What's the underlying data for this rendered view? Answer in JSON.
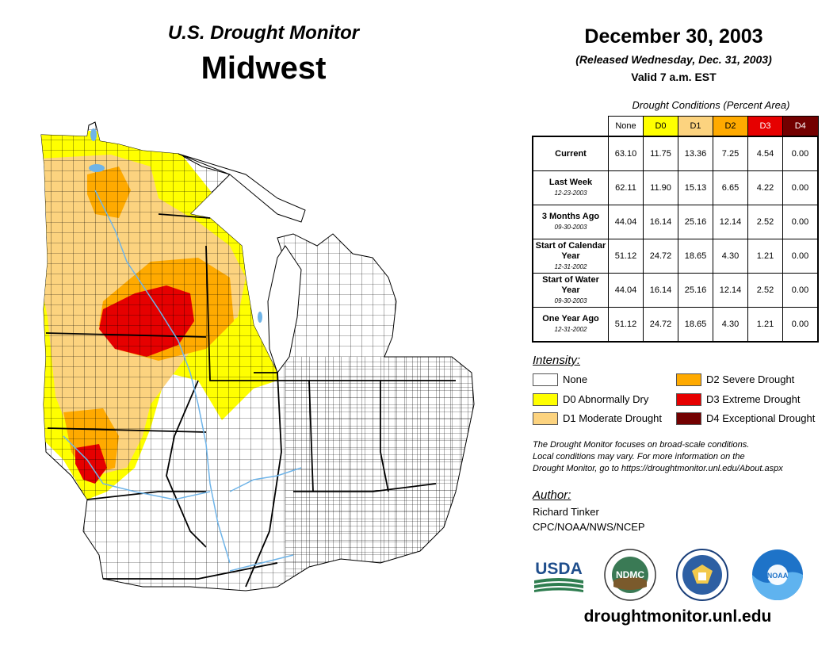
{
  "header": {
    "title": "U.S. Drought Monitor",
    "region": "Midwest"
  },
  "dates": {
    "main": "December 30, 2003",
    "released": "(Released Wednesday, Dec. 31, 2003)",
    "valid": "Valid 7 a.m. EST"
  },
  "table": {
    "caption": "Drought Conditions (Percent Area)",
    "columns": [
      "None",
      "D0",
      "D1",
      "D2",
      "D3",
      "D4"
    ],
    "rows": [
      {
        "label": "Current",
        "date": "",
        "values": [
          "63.10",
          "11.75",
          "13.36",
          "7.25",
          "4.54",
          "0.00"
        ]
      },
      {
        "label": "Last Week",
        "date": "12-23-2003",
        "values": [
          "62.11",
          "11.90",
          "15.13",
          "6.65",
          "4.22",
          "0.00"
        ]
      },
      {
        "label": "3 Months Ago",
        "date": "09-30-2003",
        "values": [
          "44.04",
          "16.14",
          "25.16",
          "12.14",
          "2.52",
          "0.00"
        ]
      },
      {
        "label": "Start of Calendar Year",
        "date": "12-31-2002",
        "values": [
          "51.12",
          "24.72",
          "18.65",
          "4.30",
          "1.21",
          "0.00"
        ]
      },
      {
        "label": "Start of Water Year",
        "date": "09-30-2003",
        "values": [
          "44.04",
          "16.14",
          "25.16",
          "12.14",
          "2.52",
          "0.00"
        ]
      },
      {
        "label": "One Year Ago",
        "date": "12-31-2002",
        "values": [
          "51.12",
          "24.72",
          "18.65",
          "4.30",
          "1.21",
          "0.00"
        ]
      }
    ]
  },
  "legend": {
    "title": "Intensity:",
    "items": [
      {
        "label": "None",
        "color": "#ffffff"
      },
      {
        "label": "D0 Abnormally Dry",
        "color": "#ffff00"
      },
      {
        "label": "D1 Moderate Drought",
        "color": "#fcd37f"
      },
      {
        "label": "D2 Severe Drought",
        "color": "#ffaa00"
      },
      {
        "label": "D3 Extreme Drought",
        "color": "#e60000"
      },
      {
        "label": "D4 Exceptional Drought",
        "color": "#730000"
      }
    ]
  },
  "note": {
    "line1": "The Drought Monitor focuses on broad-scale conditions.",
    "line2": "Local conditions may vary. For more information on the",
    "line3": "Drought Monitor, go to https://droughtmonitor.unl.edu/About.aspx"
  },
  "author": {
    "title": "Author:",
    "name": "Richard Tinker",
    "org": "CPC/NOAA/NWS/NCEP"
  },
  "logos": {
    "usda": "USDA",
    "ndmc": "NDMC",
    "noaa": "NOAA"
  },
  "website": "droughtmonitor.unl.edu"
}
